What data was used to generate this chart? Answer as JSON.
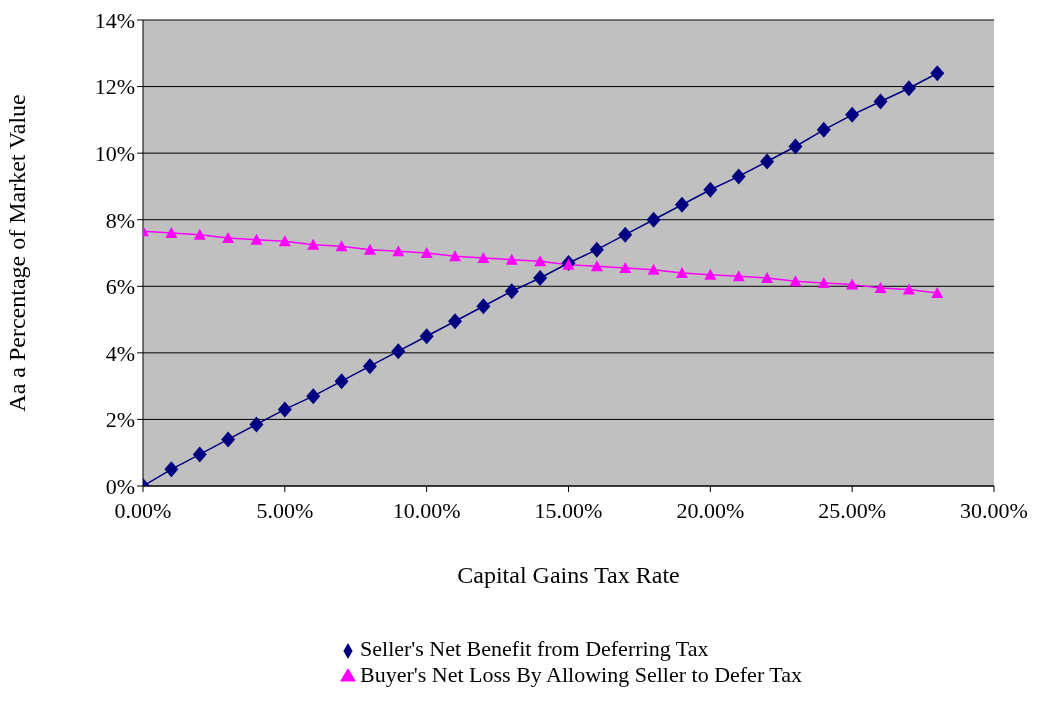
{
  "chart_data": {
    "type": "line",
    "xlabel": "Capital Gains Tax Rate",
    "ylabel": "Aa a Percentage of Market Value",
    "x": [
      0,
      1,
      2,
      3,
      4,
      5,
      6,
      7,
      8,
      9,
      10,
      11,
      12,
      13,
      14,
      15,
      16,
      17,
      18,
      19,
      20,
      21,
      22,
      23,
      24,
      25,
      26,
      27,
      28
    ],
    "series": [
      {
        "name": "Seller's Net Benefit from Deferring Tax",
        "color": "#000080",
        "marker": "diamond",
        "values": [
          0,
          0.5,
          0.95,
          1.4,
          1.85,
          2.3,
          2.7,
          3.15,
          3.6,
          4.05,
          4.5,
          4.95,
          5.4,
          5.85,
          6.25,
          6.7,
          7.1,
          7.55,
          8,
          8.45,
          8.9,
          9.3,
          9.75,
          10.2,
          10.7,
          11.15,
          11.55,
          11.95,
          12.4
        ]
      },
      {
        "name": "Buyer's Net Loss By Allowing Seller to Defer Tax",
        "color": "#ff00ff",
        "marker": "triangle",
        "values": [
          7.65,
          7.6,
          7.55,
          7.45,
          7.4,
          7.35,
          7.25,
          7.2,
          7.1,
          7.05,
          7,
          6.9,
          6.85,
          6.8,
          6.75,
          6.65,
          6.6,
          6.55,
          6.5,
          6.4,
          6.35,
          6.3,
          6.25,
          6.15,
          6.1,
          6.05,
          5.95,
          5.9,
          5.8
        ]
      }
    ],
    "xlim": [
      0,
      30
    ],
    "xticks": [
      {
        "value": 0,
        "label": "0.00%"
      },
      {
        "value": 5,
        "label": "5.00%"
      },
      {
        "value": 10,
        "label": "10.00%"
      },
      {
        "value": 15,
        "label": "15.00%"
      },
      {
        "value": 20,
        "label": "20.00%"
      },
      {
        "value": 25,
        "label": "25.00%"
      },
      {
        "value": 30,
        "label": "30.00%"
      }
    ],
    "ylim": [
      0,
      14
    ],
    "yticks": [
      {
        "value": 0,
        "label": "0%"
      },
      {
        "value": 2,
        "label": "2%"
      },
      {
        "value": 4,
        "label": "4%"
      },
      {
        "value": 6,
        "label": "6%"
      },
      {
        "value": 8,
        "label": "8%"
      },
      {
        "value": 10,
        "label": "10%"
      },
      {
        "value": 12,
        "label": "12%"
      },
      {
        "value": 14,
        "label": "14%"
      }
    ],
    "grid": "y",
    "legend": "bottom",
    "line_style": "solid"
  }
}
